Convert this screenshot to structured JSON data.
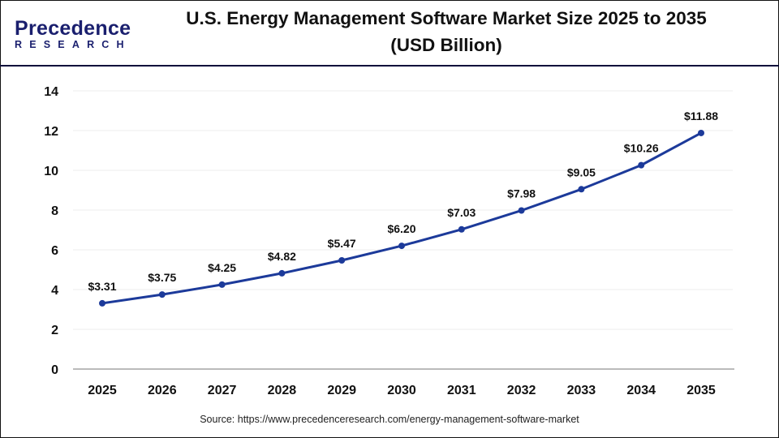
{
  "header": {
    "logo_text": "Precedence",
    "logo_subtext": "RESEARCH",
    "title_line1": "U.S. Energy Management Software Market Size 2025 to 2035",
    "title_line2": "(USD Billion)"
  },
  "source": "Source: https://www.precedenceresearch.com/energy-management-software-market",
  "colors": {
    "line": "#1c3a9a",
    "header_rule": "#0b0b3b",
    "grid": "#eeeeee"
  },
  "chart_data": {
    "type": "line",
    "title": "U.S. Energy Management Software Market Size 2025 to 2035 (USD Billion)",
    "categories": [
      "2025",
      "2026",
      "2027",
      "2028",
      "2029",
      "2030",
      "2031",
      "2032",
      "2033",
      "2034",
      "2035"
    ],
    "values": [
      3.31,
      3.75,
      4.25,
      4.82,
      5.47,
      6.2,
      7.03,
      7.98,
      9.05,
      10.26,
      11.88
    ],
    "data_labels": [
      "$3.31",
      "$3.75",
      "$4.25",
      "$4.82",
      "$5.47",
      "$6.20",
      "$7.03",
      "$7.98",
      "$9.05",
      "$10.26",
      "$11.88"
    ],
    "yticks": [
      "0",
      "2",
      "4",
      "6",
      "8",
      "10",
      "12",
      "14"
    ],
    "ylim": [
      0,
      14
    ],
    "grid": true,
    "legend": "none"
  }
}
